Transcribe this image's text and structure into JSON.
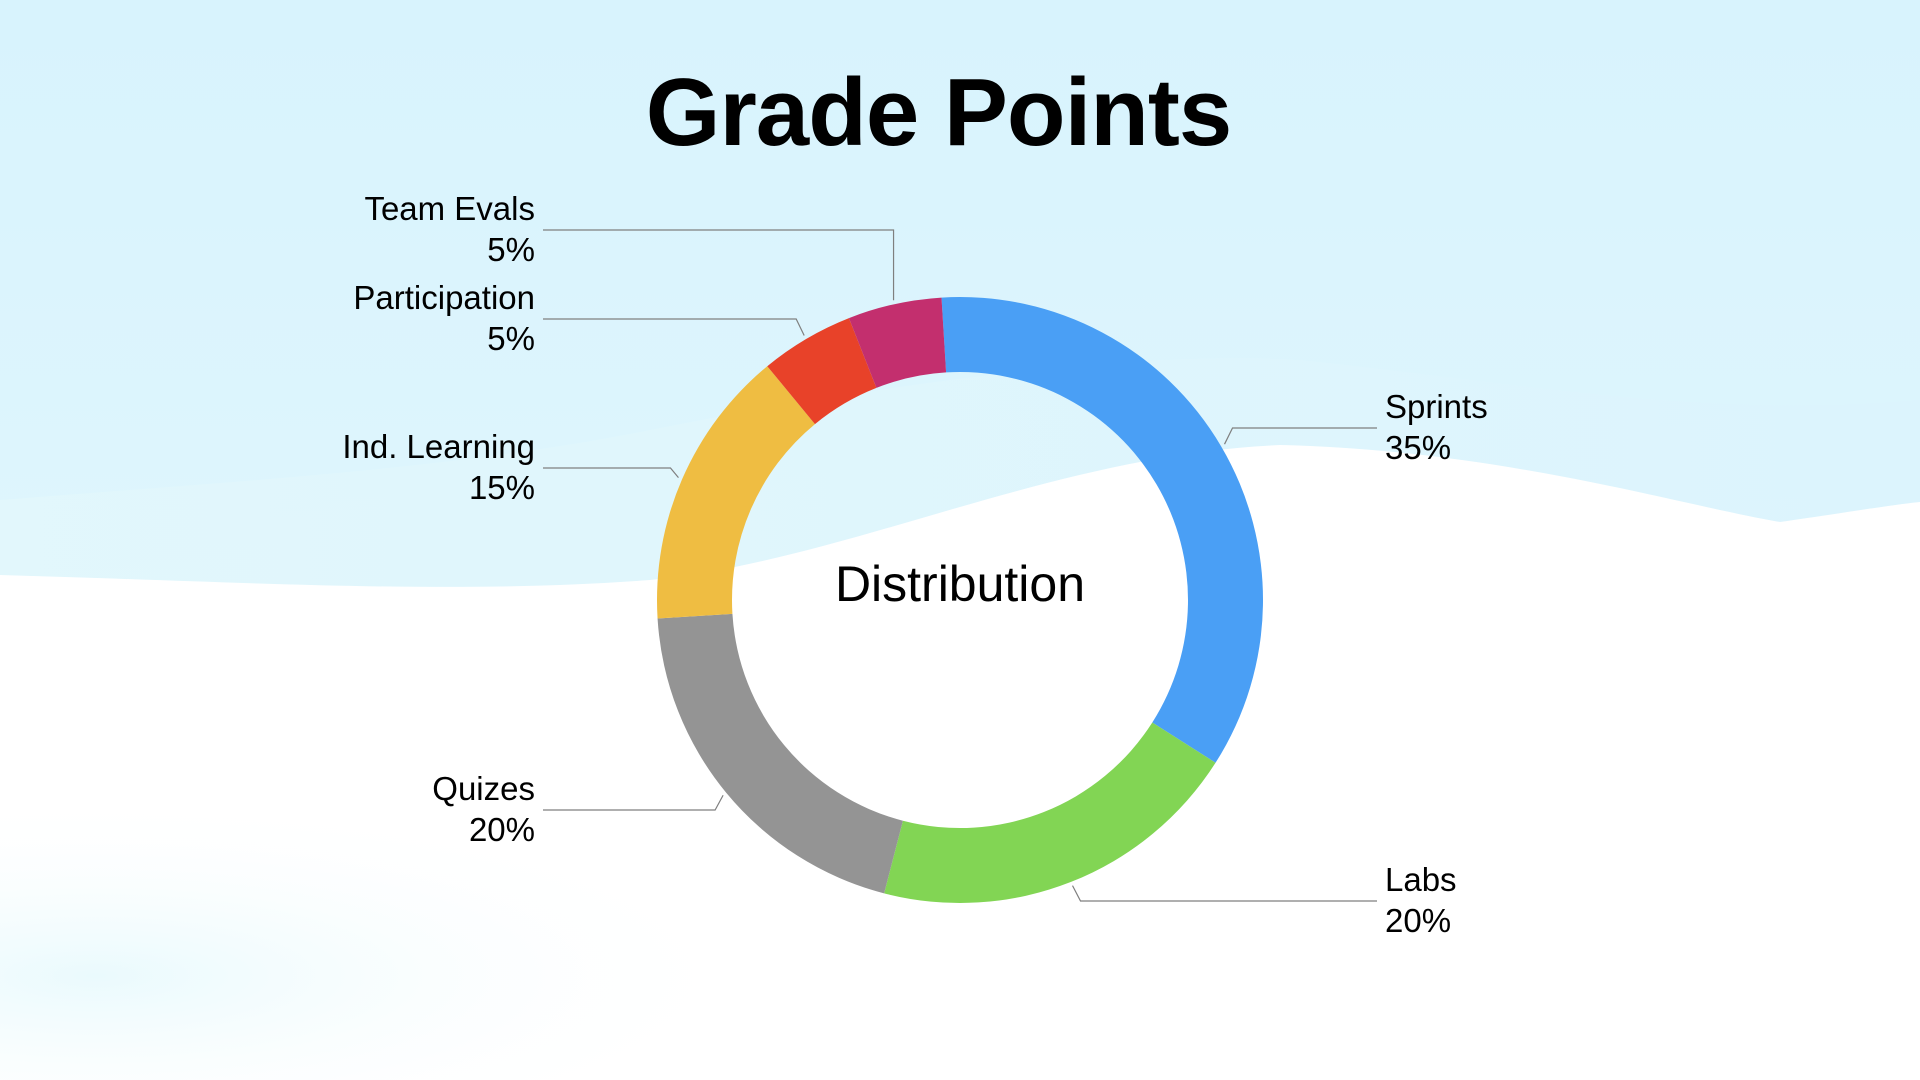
{
  "slide": {
    "title": "Grade Points"
  },
  "colors": {
    "background_top": "#d8f3fd",
    "background_bottom": "#ffffff",
    "leader_line": "#7f7f7f"
  },
  "chart_data": {
    "type": "pie",
    "style": "donut",
    "title": "Grade Points",
    "center_label": "Distribution",
    "slices": [
      {
        "label": "Sprints",
        "value": 35,
        "value_label": "35%",
        "color": "#4a9ff5"
      },
      {
        "label": "Labs",
        "value": 20,
        "value_label": "20%",
        "color": "#82d554"
      },
      {
        "label": "Quizes",
        "value": 20,
        "value_label": "20%",
        "color": "#949494"
      },
      {
        "label": "Ind. Learning",
        "value": 15,
        "value_label": "15%",
        "color": "#efbd42"
      },
      {
        "label": "Participation",
        "value": 5,
        "value_label": "5%",
        "color": "#e84229"
      },
      {
        "label": "Team Evals",
        "value": 5,
        "value_label": "5%",
        "color": "#c32f6e"
      }
    ]
  }
}
